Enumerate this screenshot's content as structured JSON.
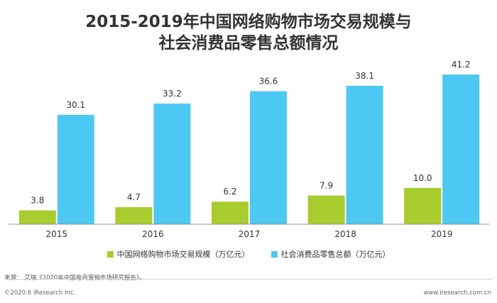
{
  "chart_data": {
    "type": "bar",
    "title_lines": [
      "2015-2019年中国网络购物市场交易规模与",
      "社会消费品零售总额情况"
    ],
    "categories": [
      "2015",
      "2016",
      "2017",
      "2018",
      "2019"
    ],
    "series": [
      {
        "name": "中国网络购物市场交易规模（万亿元）",
        "values": [
          3.8,
          4.7,
          6.2,
          7.9,
          10.0
        ],
        "labels": [
          "3.8",
          "4.7",
          "6.2",
          "7.9",
          "10.0"
        ],
        "color": "#a8cc2e"
      },
      {
        "name": "社会消费品零售总额（万亿元）",
        "values": [
          30.1,
          33.2,
          36.6,
          38.1,
          41.2
        ],
        "labels": [
          "30.1",
          "33.2",
          "36.6",
          "38.1",
          "41.2"
        ],
        "color": "#4dc8f2"
      }
    ],
    "legend_position": "bottom",
    "grid": false
  },
  "footer": {
    "source": "来源：  艾瑞《2020年中国电商营销市场研究报告》。",
    "copyright": "©2020.6 iResearch Inc.",
    "website": "www.iresearch.com.cn"
  }
}
